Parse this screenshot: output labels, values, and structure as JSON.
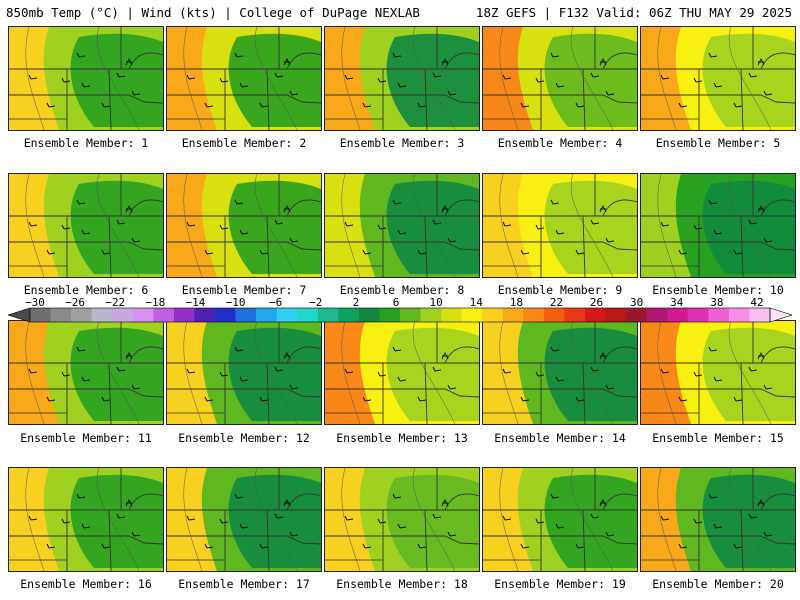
{
  "header": {
    "left": "850mb Temp (°C) | Wind (kts) | College of DuPage NEXLAB",
    "right": "18Z GEFS | F132 Valid: 06Z THU MAY 29 2025"
  },
  "colorbar": {
    "labels": [
      "−30",
      "−26",
      "−22",
      "−18",
      "−14",
      "−10",
      "−6",
      "−2",
      "2",
      "6",
      "10",
      "14",
      "18",
      "22",
      "26",
      "30",
      "34",
      "38",
      "42"
    ],
    "colors": [
      "#6e6e6e",
      "#8a8a8a",
      "#a0a0a0",
      "#b8b8c8",
      "#c8a8e0",
      "#d890f0",
      "#c060e0",
      "#9030c8",
      "#5020b0",
      "#2030c8",
      "#2070e0",
      "#20a8f0",
      "#30d0f0",
      "#20d8c8",
      "#20b890",
      "#10a060",
      "#108840",
      "#28a020",
      "#60b820",
      "#a0d020",
      "#d8e010",
      "#f8f010",
      "#f8d020",
      "#f8a818",
      "#f88818",
      "#f06010",
      "#e83818",
      "#d81818",
      "#b81818",
      "#981830",
      "#b01870",
      "#d01890",
      "#e030b0",
      "#f060d0",
      "#f890e8",
      "#f8c0f0"
    ]
  },
  "panels": [
    {
      "label": "Ensemble Member: 1"
    },
    {
      "label": "Ensemble Member: 2"
    },
    {
      "label": "Ensemble Member: 3"
    },
    {
      "label": "Ensemble Member: 4"
    },
    {
      "label": "Ensemble Member: 5"
    },
    {
      "label": "Ensemble Member: 6"
    },
    {
      "label": "Ensemble Member: 7"
    },
    {
      "label": "Ensemble Member: 8"
    },
    {
      "label": "Ensemble Member: 9"
    },
    {
      "label": "Ensemble Member: 10"
    },
    {
      "label": "Ensemble Member: 11"
    },
    {
      "label": "Ensemble Member: 12"
    },
    {
      "label": "Ensemble Member: 13"
    },
    {
      "label": "Ensemble Member: 14"
    },
    {
      "label": "Ensemble Member: 15"
    },
    {
      "label": "Ensemble Member: 16"
    },
    {
      "label": "Ensemble Member: 17"
    },
    {
      "label": "Ensemble Member: 18"
    },
    {
      "label": "Ensemble Member: 19"
    },
    {
      "label": "Ensemble Member: 20"
    }
  ]
}
